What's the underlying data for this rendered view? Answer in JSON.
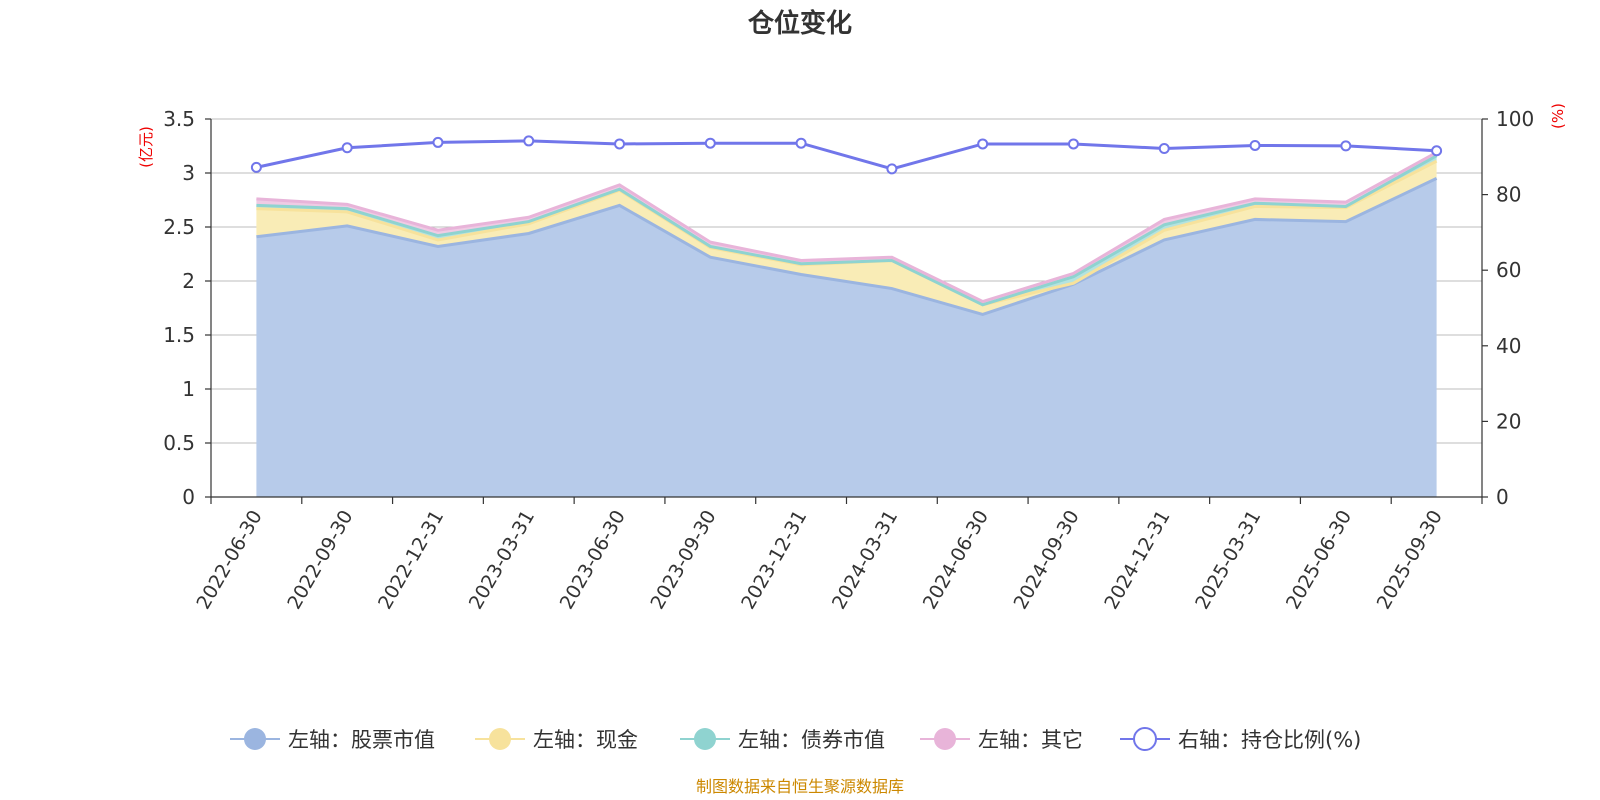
{
  "chart_data": {
    "type": "area",
    "title": "仓位变化",
    "left_axis_unit": "(亿元)",
    "right_axis_unit": "(%)",
    "categories": [
      "2022-06-30",
      "2022-09-30",
      "2022-12-31",
      "2023-03-31",
      "2023-06-30",
      "2023-09-30",
      "2023-12-31",
      "2024-03-31",
      "2024-06-30",
      "2024-09-30",
      "2024-12-31",
      "2025-03-31",
      "2025-06-30",
      "2025-09-30"
    ],
    "left_ylim": [
      0,
      3.5
    ],
    "left_ticks": [
      "0",
      "0.5",
      "1",
      "1.5",
      "2",
      "2.5",
      "3",
      "3.5"
    ],
    "right_ylim": [
      0,
      100
    ],
    "right_ticks": [
      "0",
      "20",
      "40",
      "60",
      "80",
      "100"
    ],
    "grid": true,
    "legend_position": "bottom",
    "stacked": true,
    "series": [
      {
        "name": "左轴：股票市值",
        "axis": "left",
        "color": "#9bb5e0",
        "fill": "#b7cbea",
        "values": [
          2.41,
          2.51,
          2.32,
          2.44,
          2.7,
          2.22,
          2.06,
          1.93,
          1.69,
          1.97,
          2.38,
          2.57,
          2.55,
          2.95
        ]
      },
      {
        "name": "左轴：现金",
        "axis": "left",
        "color": "#f7e29c",
        "fill": "#f9ecb6",
        "values": [
          0.26,
          0.13,
          0.06,
          0.09,
          0.14,
          0.09,
          0.09,
          0.26,
          0.09,
          0.01,
          0.09,
          0.12,
          0.13,
          0.16
        ]
      },
      {
        "name": "左轴：债券市值",
        "axis": "left",
        "color": "#8fd3d0",
        "fill": "#b3e3e0",
        "values": [
          0.03,
          0.03,
          0.04,
          0.02,
          0.01,
          0.01,
          0.01,
          0.0,
          0.0,
          0.06,
          0.05,
          0.03,
          0.01,
          0.05
        ]
      },
      {
        "name": "左轴：其它",
        "axis": "left",
        "color": "#e8b4d9",
        "fill": "#efcbe4",
        "values": [
          0.06,
          0.04,
          0.05,
          0.04,
          0.04,
          0.04,
          0.03,
          0.03,
          0.03,
          0.03,
          0.05,
          0.04,
          0.04,
          0.03
        ]
      },
      {
        "name": "右轴：持仓比例(%)",
        "axis": "right",
        "color": "#7176ea",
        "type": "line",
        "values": [
          87.2,
          92.4,
          93.8,
          94.2,
          93.4,
          93.6,
          93.6,
          86.8,
          93.4,
          93.4,
          92.2,
          93.0,
          92.9,
          91.6
        ]
      }
    ]
  },
  "source_note": "制图数据来自恒生聚源数据库"
}
